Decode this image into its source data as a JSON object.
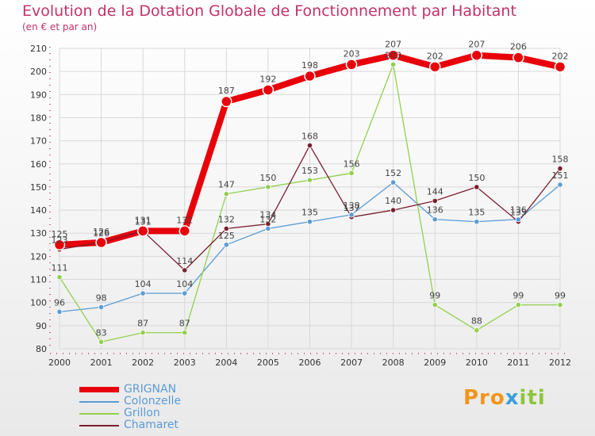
{
  "header": {
    "title": "Evolution de la Dotation Globale de Fonctionnement par Habitant",
    "subtitle": "(en € et par an)"
  },
  "logo": {
    "part1": "Pro",
    "part2": "x",
    "part3": "iti"
  },
  "colors": {
    "title": "#c2326a",
    "grignan": "#e8000b",
    "colonzelle": "#5b9bd5",
    "grillon": "#92d050",
    "chamaret": "#7b1f2f",
    "axis": "#c2326a"
  },
  "chart_data": {
    "type": "line",
    "title": "Evolution de la Dotation Globale de Fonctionnement par Habitant",
    "ylabel": "(en € et par an)",
    "xlabel": "",
    "x": [
      "2000",
      "2001",
      "2002",
      "2003",
      "2004",
      "2005",
      "2006",
      "2007",
      "2008",
      "2009",
      "2010",
      "2011",
      "2012"
    ],
    "ylim": [
      80,
      210
    ],
    "yticks": [
      80,
      90,
      100,
      110,
      120,
      130,
      140,
      150,
      160,
      170,
      180,
      190,
      200,
      210
    ],
    "grid": true,
    "legend_position": "bottom-left",
    "series": [
      {
        "name": "GRIGNAN",
        "values": [
          125,
          126,
          131,
          131,
          187,
          192,
          198,
          203,
          207,
          202,
          207,
          206,
          202
        ]
      },
      {
        "name": "Colonzelle",
        "values": [
          96,
          98,
          104,
          104,
          125,
          132,
          135,
          138,
          152,
          136,
          135,
          136,
          151
        ]
      },
      {
        "name": "Grillon",
        "values": [
          111,
          83,
          87,
          87,
          147,
          150,
          153,
          156,
          203,
          99,
          88,
          99,
          99
        ]
      },
      {
        "name": "Chamaret",
        "values": [
          123,
          126,
          131,
          114,
          132,
          134,
          168,
          137,
          140,
          144,
          150,
          135,
          158
        ]
      }
    ],
    "point_labels": [
      [
        "125",
        "126",
        "131",
        "131",
        "187",
        "192",
        "198",
        "203",
        "207",
        "202",
        "207",
        "206",
        "202"
      ],
      [
        "96",
        "98",
        "104",
        "104",
        "125",
        "132",
        "135",
        "138",
        "152",
        "136",
        "135",
        "136",
        "151"
      ],
      [
        "111",
        "83",
        "87",
        "87",
        "147",
        "150",
        "153",
        "156",
        "203",
        "99",
        "88",
        "99",
        "99"
      ],
      [
        "123",
        "126",
        "131",
        "114",
        "132",
        "134",
        "168",
        "137",
        "140",
        "144",
        "150",
        "135",
        "158"
      ]
    ]
  }
}
